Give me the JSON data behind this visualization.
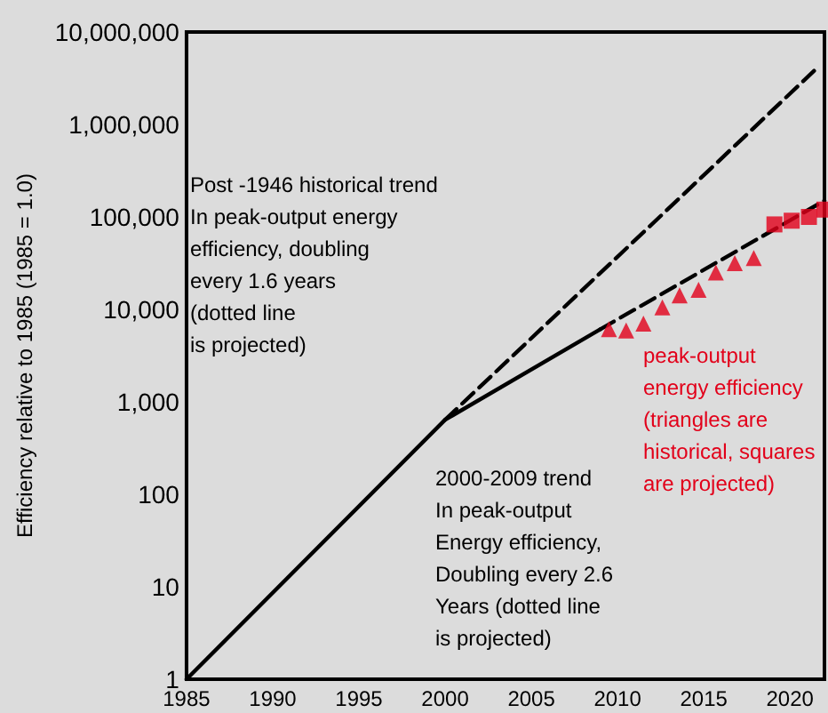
{
  "chart_data": {
    "type": "line",
    "ylabel": "Efficiency relative to 1985 (1985 = 1.0)",
    "log": "y",
    "grid": false,
    "xlim": [
      1985,
      2022
    ],
    "xticks": [
      1985,
      1990,
      1995,
      2000,
      2005,
      2010,
      2015,
      2020
    ],
    "ylim": [
      1,
      10000000
    ],
    "yticks": [
      {
        "value": 1,
        "label": "1"
      },
      {
        "value": 10,
        "label": "10"
      },
      {
        "value": 100,
        "label": "100"
      },
      {
        "value": 1000,
        "label": "1,000"
      },
      {
        "value": 10000,
        "label": "10,000"
      },
      {
        "value": 100000,
        "label": "100,000"
      },
      {
        "value": 1000000,
        "label": "1,000,000"
      },
      {
        "value": 10000000,
        "label": "10,000,000"
      }
    ],
    "series": [
      {
        "color": "#000000",
        "line_style": "solid",
        "marker": "none",
        "x": [
          1985,
          2000,
          2009
        ],
        "values": [
          1,
          640,
          6100
        ]
      },
      {
        "color": "#000000",
        "line_style": "dashed",
        "marker": "none",
        "x": [
          2000,
          2021.4
        ],
        "values": [
          640,
          3800000
        ]
      },
      {
        "color": "#000000",
        "line_style": "dashed",
        "marker": "none",
        "x": [
          2009,
          2022
        ],
        "values": [
          6100,
          150000
        ]
      },
      {
        "type": "scatter",
        "color": "#e2001a",
        "marker": "triangle",
        "x": [
          2009.5,
          2010.5,
          2011.5,
          2012.6,
          2013.6,
          2014.7,
          2015.7,
          2016.8,
          2017.9
        ],
        "values": [
          6100,
          5900,
          7000,
          10500,
          14200,
          16300,
          25000,
          31600,
          36000
        ]
      },
      {
        "type": "scatter",
        "color": "#e2001a",
        "marker": "square",
        "x": [
          2019.1,
          2020.1,
          2021.1,
          2022
        ],
        "values": [
          83000,
          91000,
          100000,
          120000
        ]
      }
    ],
    "annotations": [
      "Post -1946 historical trend\nIn peak-output energy\nefficiency, doubling\nevery 1.6 years\n(dotted line\nis projected)",
      "2000-2009 trend\nIn peak-output\nEnergy efficiency,\nDoubling every 2.6\nYears (dotted line\nis projected)",
      "peak-output\nenergy efficiency\n(triangles are\nhistorical, squares\nare projected)"
    ]
  }
}
